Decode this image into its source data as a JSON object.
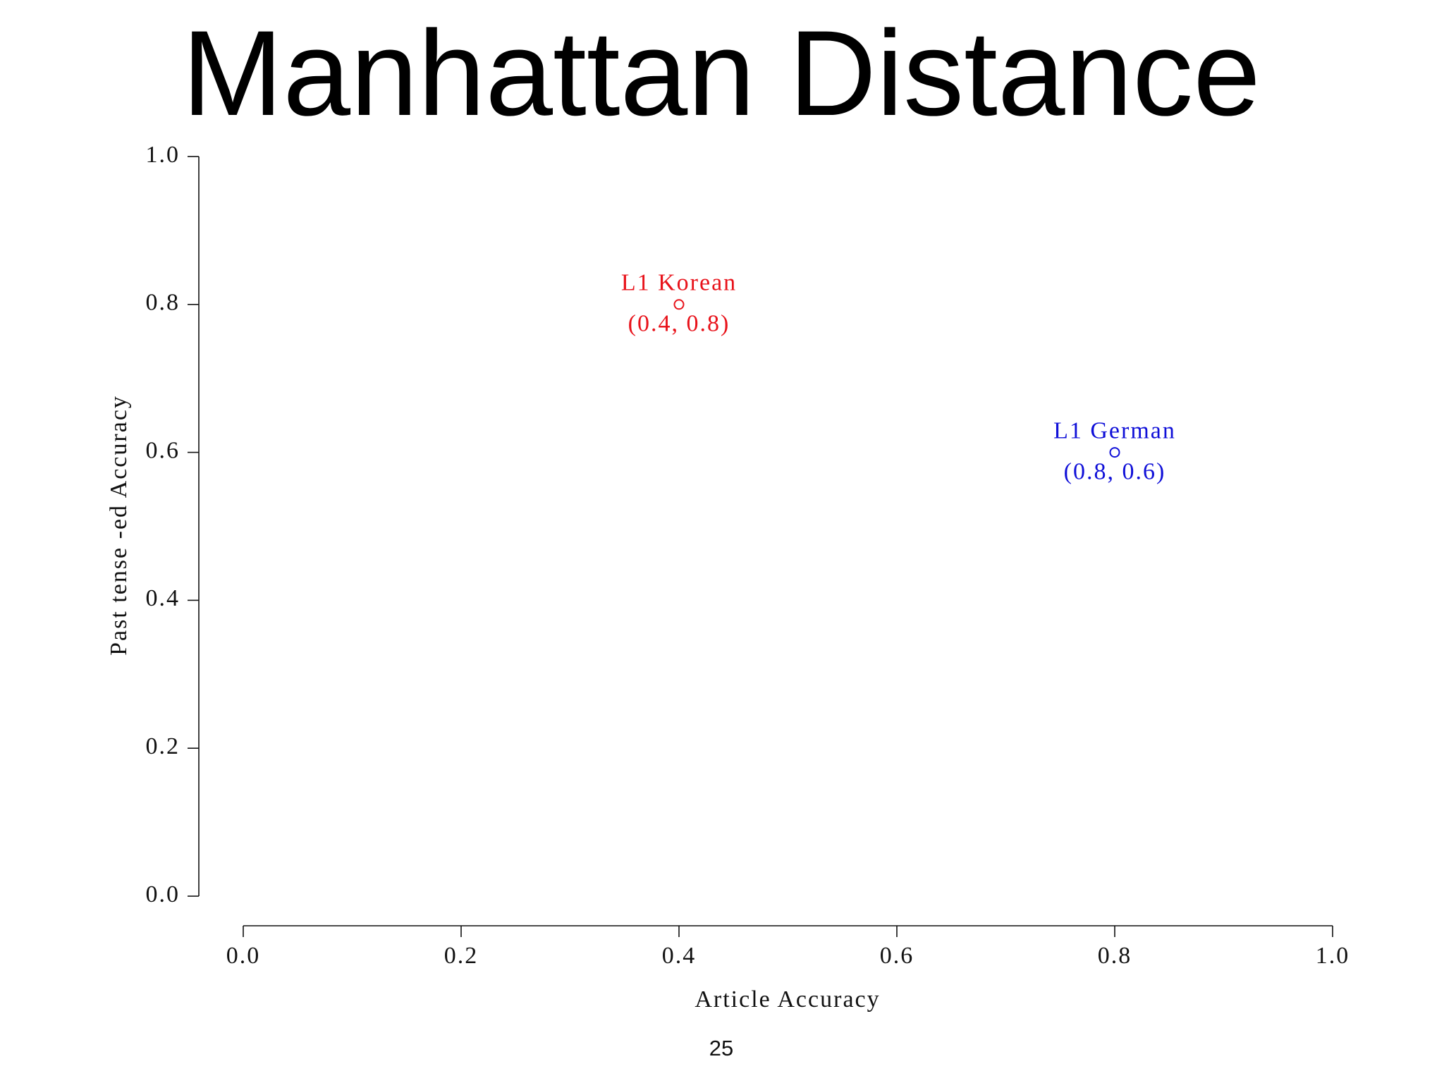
{
  "chart_data": {
    "type": "scatter",
    "title": "Manhattan Distance",
    "x_label": "Article Accuracy",
    "y_label": "Past tense -ed Accuracy",
    "series": [
      {
        "name": "L1 Korean",
        "color": "#e8121a",
        "x": [
          0.4
        ],
        "values": [
          0.8
        ],
        "value_labels": [
          "(0.4, 0.8)"
        ]
      },
      {
        "name": "L1 German",
        "color": "#1010d8",
        "x": [
          0.8
        ],
        "values": [
          0.6
        ],
        "value_labels": [
          "(0.8, 0.6)"
        ]
      }
    ],
    "xlim": [
      0,
      1
    ],
    "ylim": [
      0,
      1
    ],
    "xticks": [
      {
        "value": 0,
        "label": "0.0"
      },
      0.2,
      0.4,
      0.6,
      0.8,
      {
        "value": 1,
        "label": "1.0"
      }
    ],
    "yticks": [
      {
        "value": 0,
        "label": "0.0"
      },
      0.2,
      0.4,
      0.6,
      0.8,
      {
        "value": 1,
        "label": "1.0"
      }
    ],
    "grid": false
  },
  "page_number": "25"
}
